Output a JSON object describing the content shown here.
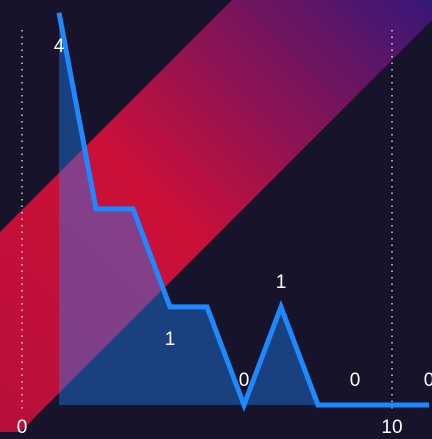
{
  "chart_data": {
    "type": "area",
    "x": [
      1,
      2,
      3,
      4,
      5,
      6,
      7,
      8,
      9,
      10,
      11
    ],
    "values": [
      4,
      2,
      2,
      1,
      1,
      0,
      1,
      0,
      0,
      0,
      0
    ],
    "value_labels": [
      "4",
      null,
      null,
      "1",
      null,
      "0",
      "1",
      null,
      "0",
      null,
      "0"
    ],
    "color": "#1e88ff",
    "xlim": [
      0,
      11
    ],
    "xticks": [
      0,
      10
    ],
    "ylim": [
      0,
      4.13
    ],
    "grid": true
  }
}
